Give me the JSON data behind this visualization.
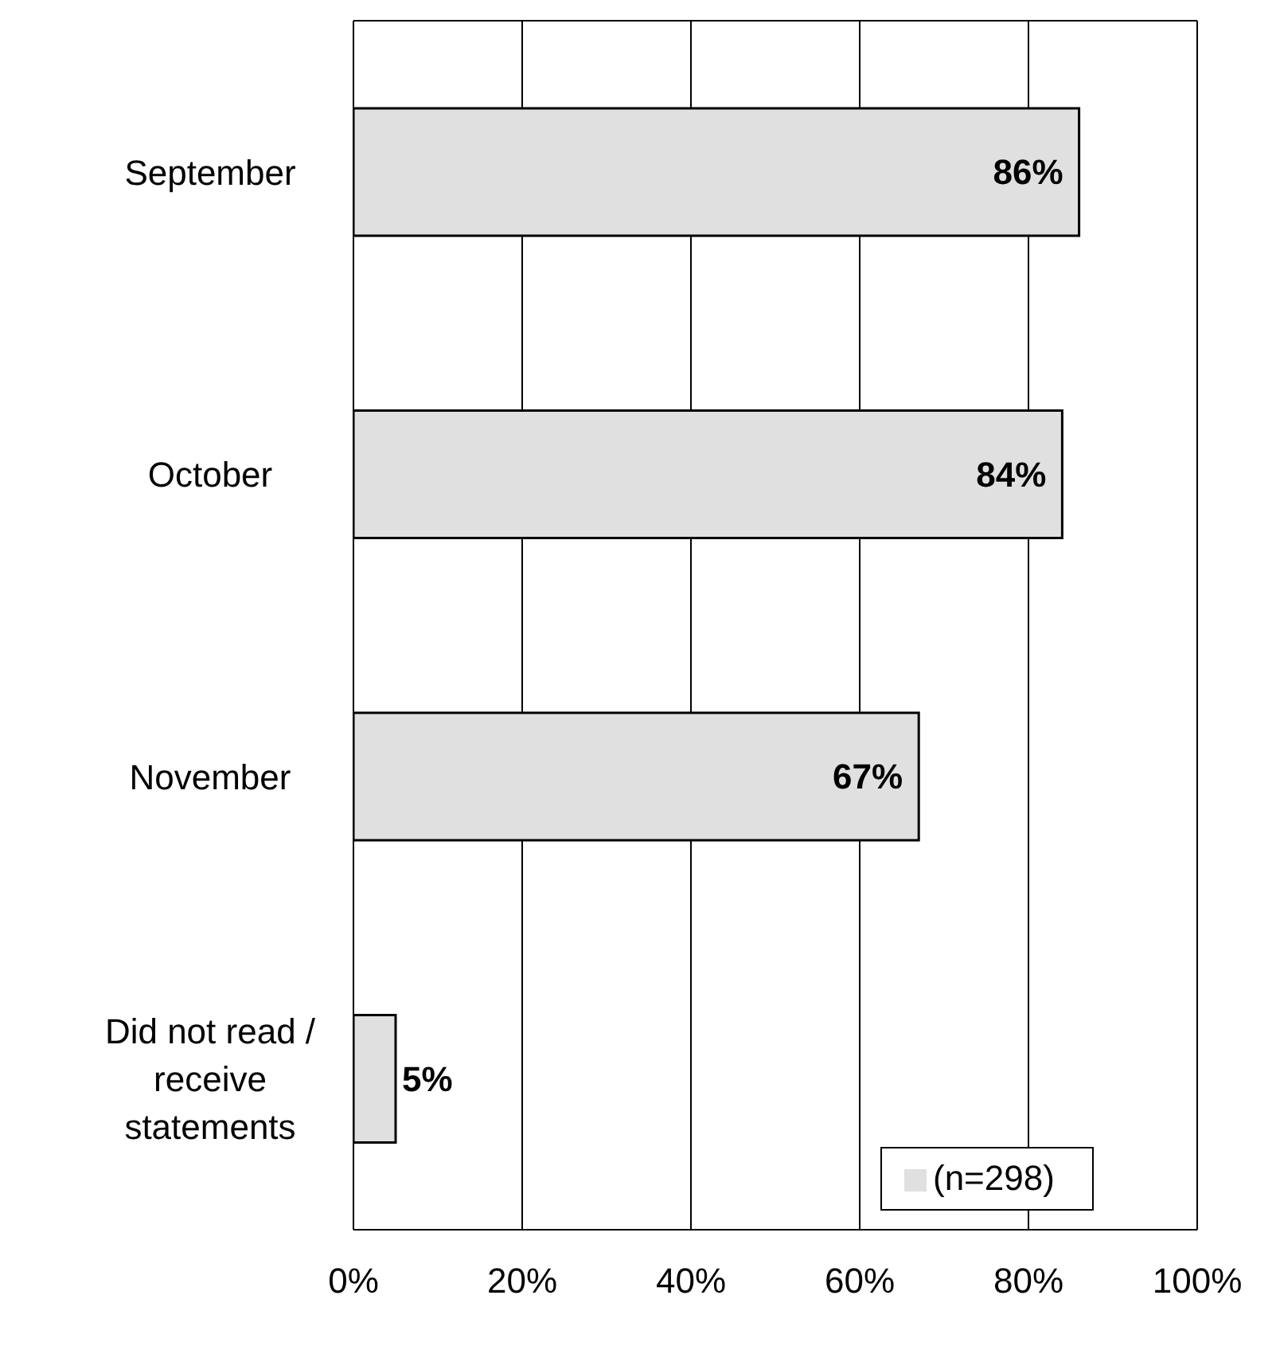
{
  "chart_data": {
    "type": "bar",
    "orientation": "horizontal",
    "categories": [
      "September",
      "October",
      "November",
      "Did not read / receive statements"
    ],
    "series": [
      {
        "name": "(n=298)",
        "color": "#e0e0e0",
        "values": [
          86,
          84,
          67,
          5
        ],
        "value_labels": [
          "86%",
          "84%",
          "67%",
          "5%"
        ]
      }
    ],
    "xlim": [
      0,
      100
    ],
    "xticks": [
      {
        "value": 0,
        "label": "0%"
      },
      {
        "value": 20,
        "label": "20%"
      },
      {
        "value": 40,
        "label": "40%"
      },
      {
        "value": 60,
        "label": "60%"
      },
      {
        "value": 80,
        "label": "80%"
      },
      {
        "value": 100,
        "label": "100%"
      }
    ],
    "grid": "x",
    "legend": "bottom right"
  }
}
